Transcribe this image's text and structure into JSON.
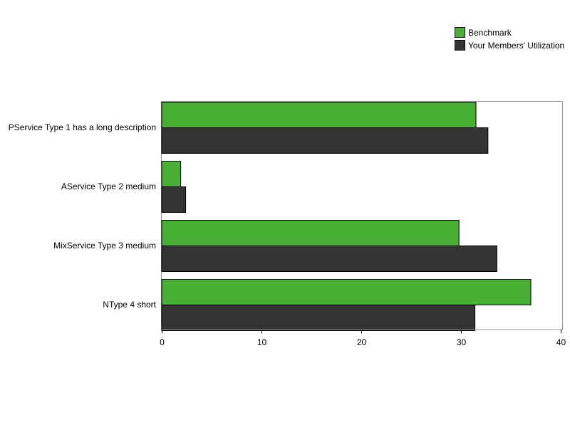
{
  "chart_data": {
    "type": "bar",
    "orientation": "horizontal",
    "categories": [
      "PService Type 1 has a long description",
      "AService Type 2 medium",
      "MixService Type 3 medium",
      "NType 4 short"
    ],
    "series": [
      {
        "name": "Benchmark",
        "color": "#4aaf35",
        "values": [
          31.5,
          1.9,
          29.8,
          37.0
        ]
      },
      {
        "name": "Your Members' Utilization",
        "color": "#333333",
        "values": [
          32.7,
          2.4,
          33.6,
          31.4
        ]
      }
    ],
    "xlim": [
      0,
      40
    ],
    "xticks": [
      0,
      10,
      20,
      30,
      40
    ],
    "title": "",
    "xlabel": "",
    "ylabel": "",
    "grid": false,
    "legend_position": "top-right"
  }
}
